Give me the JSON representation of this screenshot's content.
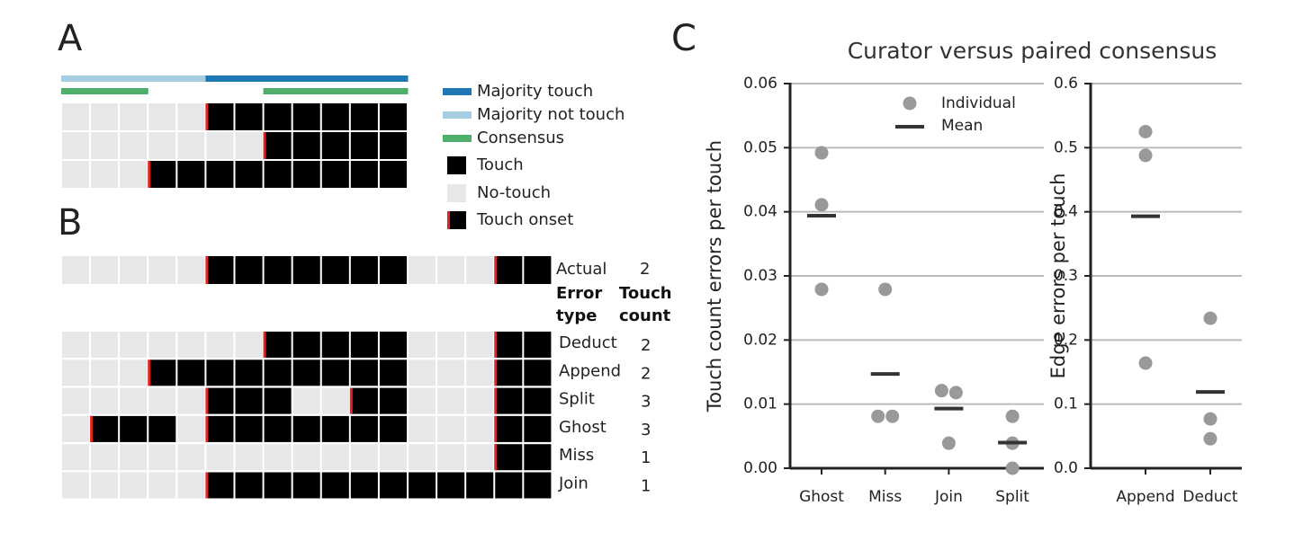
{
  "panel_labels": [
    "A",
    "B",
    "C"
  ],
  "colors": {
    "majority_touch": "#1f78b4",
    "majority_not_touch": "#a6cee3",
    "consensus": "#4daf6a",
    "touch": "#000000",
    "no_touch": "#e6e7e9",
    "onset": "#e3231c"
  },
  "panel_a": {
    "majority": [
      0,
      0,
      0,
      0,
      0,
      1,
      1,
      1,
      1,
      1,
      1,
      1
    ],
    "consensus": [
      1,
      1,
      1,
      0,
      0,
      0,
      0,
      1,
      1,
      1,
      1,
      1
    ],
    "rows": [
      [
        0,
        0,
        0,
        0,
        0,
        1,
        1,
        1,
        1,
        1,
        1,
        1
      ],
      [
        0,
        0,
        0,
        0,
        0,
        0,
        0,
        1,
        1,
        1,
        1,
        1
      ],
      [
        0,
        0,
        0,
        1,
        1,
        1,
        1,
        1,
        1,
        1,
        1,
        1
      ]
    ],
    "legend": [
      "Majority touch",
      "Majority not touch",
      "Consensus",
      "Touch",
      "No-touch",
      "Touch onset"
    ]
  },
  "panel_b": {
    "actual": {
      "label": "Actual",
      "count": 2,
      "cells": [
        0,
        0,
        0,
        0,
        0,
        1,
        1,
        1,
        1,
        1,
        1,
        1,
        0,
        0,
        0,
        1,
        1
      ]
    },
    "header": [
      "Error type",
      "Touch count"
    ],
    "rows": [
      {
        "label": "Deduct",
        "count": 2,
        "cells": [
          0,
          0,
          0,
          0,
          0,
          0,
          0,
          1,
          1,
          1,
          1,
          1,
          0,
          0,
          0,
          1,
          1
        ]
      },
      {
        "label": "Append",
        "count": 2,
        "cells": [
          0,
          0,
          0,
          1,
          1,
          1,
          1,
          1,
          1,
          1,
          1,
          1,
          0,
          0,
          0,
          1,
          1
        ]
      },
      {
        "label": "Split",
        "count": 3,
        "cells": [
          0,
          0,
          0,
          0,
          0,
          1,
          1,
          1,
          0,
          0,
          1,
          1,
          0,
          0,
          0,
          1,
          1
        ]
      },
      {
        "label": "Ghost",
        "count": 3,
        "cells": [
          0,
          1,
          1,
          1,
          0,
          1,
          1,
          1,
          1,
          1,
          1,
          1,
          0,
          0,
          0,
          1,
          1
        ]
      },
      {
        "label": "Miss",
        "count": 1,
        "cells": [
          0,
          0,
          0,
          0,
          0,
          0,
          0,
          0,
          0,
          0,
          0,
          0,
          0,
          0,
          0,
          1,
          1
        ]
      },
      {
        "label": "Join",
        "count": 1,
        "cells": [
          0,
          0,
          0,
          0,
          0,
          1,
          1,
          1,
          1,
          1,
          1,
          1,
          1,
          1,
          1,
          1,
          1
        ]
      }
    ]
  },
  "chart_data": [
    {
      "type": "scatter",
      "title": "Curator versus paired consensus",
      "ylabel": "Touch count errors per touch",
      "categories": [
        "Ghost",
        "Miss",
        "Join",
        "Split"
      ],
      "ylim": [
        0,
        0.06
      ],
      "yticks": [
        {
          "value": 0,
          "label": "0.00"
        },
        0.01,
        0.02,
        0.03,
        0.04,
        0.05,
        0.06
      ],
      "grid": true,
      "series": [
        {
          "name": "Individual",
          "color": "#999999",
          "values": [
            [
              0.0492,
              0.0411,
              0.0279
            ],
            [
              0.0279,
              0.0081,
              0.0081
            ],
            [
              0.0121,
              0.0118,
              0.0039
            ],
            [
              0.0081,
              0.0039,
              0
            ]
          ]
        },
        {
          "name": "Mean",
          "color": "#333333",
          "values": [
            0.0394,
            0.0147,
            0.0093,
            0.004
          ]
        }
      ]
    },
    {
      "type": "scatter",
      "ylabel": "Edge errors per touch",
      "categories": [
        "Append",
        "Deduct"
      ],
      "ylim": [
        0,
        0.6
      ],
      "yticks": [
        {
          "value": 0,
          "label": "0.0"
        },
        0.1,
        0.2,
        0.3,
        0.4,
        0.5,
        0.6
      ],
      "grid": true,
      "series": [
        {
          "name": "Individual",
          "color": "#999999",
          "values": [
            [
              0.525,
              0.488,
              0.164
            ],
            [
              0.234,
              0.077,
              0.046
            ]
          ]
        },
        {
          "name": "Mean",
          "color": "#333333",
          "values": [
            0.393,
            0.119
          ]
        }
      ]
    }
  ]
}
